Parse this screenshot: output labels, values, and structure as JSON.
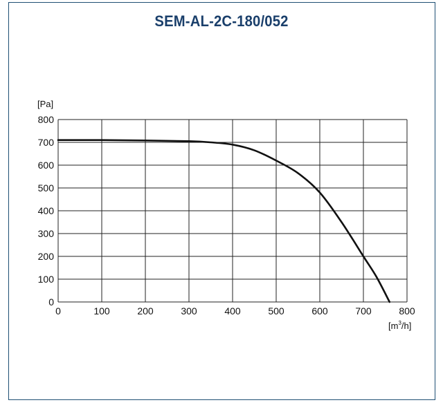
{
  "chart_data": {
    "type": "line",
    "title": "SEM-AL-2C-180/052",
    "ylabel": "[Pa]",
    "xlabel_base": "[m",
    "xlabel_sup": "3",
    "xlabel_tail": "/h]",
    "xlim": [
      0,
      800
    ],
    "ylim": [
      0,
      800
    ],
    "xticks": [
      0,
      100,
      200,
      300,
      400,
      500,
      600,
      700,
      800
    ],
    "yticks": [
      0,
      100,
      200,
      300,
      400,
      500,
      600,
      700,
      800
    ],
    "grid": true,
    "series": [
      {
        "color": "#111111",
        "x": [
          0,
          100,
          200,
          300,
          350,
          400,
          450,
          500,
          550,
          600,
          650,
          700,
          730,
          760
        ],
        "y": [
          710,
          710,
          708,
          705,
          700,
          690,
          665,
          620,
          565,
          480,
          350,
          200,
          110,
          0
        ]
      }
    ]
  }
}
